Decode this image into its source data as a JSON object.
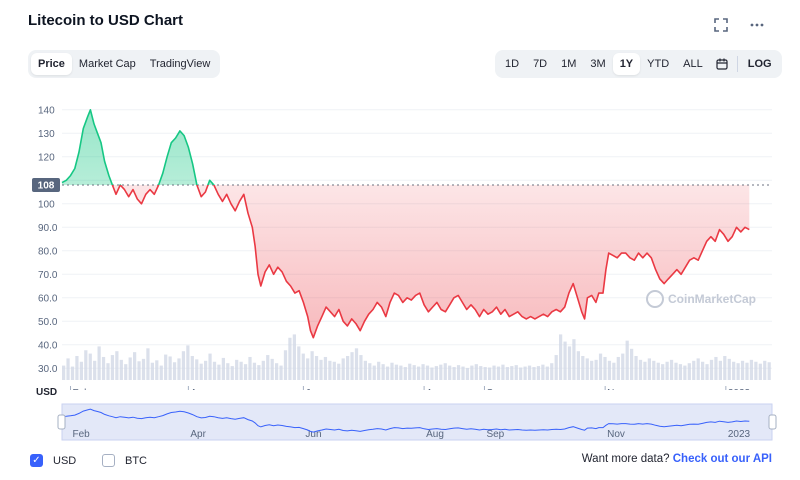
{
  "header": {
    "title": "Litecoin to USD Chart",
    "fullscreen_icon": "expand-icon",
    "more_icon": "more-dots-icon"
  },
  "metric_tabs": [
    {
      "label": "Price",
      "active": true
    },
    {
      "label": "Market Cap",
      "active": false
    },
    {
      "label": "TradingView",
      "active": false
    }
  ],
  "range_tabs": [
    {
      "label": "1D",
      "active": false
    },
    {
      "label": "7D",
      "active": false
    },
    {
      "label": "1M",
      "active": false
    },
    {
      "label": "3M",
      "active": false
    },
    {
      "label": "1Y",
      "active": true
    },
    {
      "label": "YTD",
      "active": false
    },
    {
      "label": "ALL",
      "active": false
    }
  ],
  "calendar_icon": "calendar-icon",
  "log_label": "LOG",
  "watermark": "CoinMarketCap",
  "currency_axis_label": "USD",
  "colors": {
    "up": "#16c784",
    "down": "#ea3943",
    "accent": "#3861fb"
  },
  "chart_data": {
    "type": "line",
    "ylim": [
      25,
      145
    ],
    "yticks": [
      30,
      40,
      50,
      60,
      70,
      80,
      90,
      100,
      110,
      120,
      130,
      140
    ],
    "ytick_labels": [
      "30.0",
      "40.0",
      "50.0",
      "60.0",
      "70.0",
      "80.0",
      "90.0",
      "100",
      "",
      "120",
      "130",
      "140"
    ],
    "reference_value": 108,
    "reference_label": "108",
    "x_ticks": [
      {
        "label": "Feb",
        "t": 0.012
      },
      {
        "label": "Apr",
        "t": 0.178
      },
      {
        "label": "Jun",
        "t": 0.34
      },
      {
        "label": "Aug",
        "t": 0.51
      },
      {
        "label": "Sep",
        "t": 0.595
      },
      {
        "label": "Nov",
        "t": 0.765
      },
      {
        "label": "2023",
        "t": 0.935
      }
    ],
    "series": [
      {
        "points": [
          [
            0.0,
            109
          ],
          [
            0.006,
            110
          ],
          [
            0.012,
            112
          ],
          [
            0.018,
            115
          ],
          [
            0.024,
            122
          ],
          [
            0.03,
            132
          ],
          [
            0.036,
            137
          ],
          [
            0.04,
            140
          ],
          [
            0.045,
            134
          ],
          [
            0.05,
            130
          ],
          [
            0.055,
            126
          ],
          [
            0.06,
            118
          ],
          [
            0.066,
            112
          ],
          [
            0.071,
            108
          ],
          [
            0.076,
            104
          ],
          [
            0.082,
            108
          ],
          [
            0.088,
            106
          ],
          [
            0.094,
            103
          ],
          [
            0.1,
            106
          ],
          [
            0.106,
            102
          ],
          [
            0.112,
            100
          ],
          [
            0.118,
            104
          ],
          [
            0.124,
            106
          ],
          [
            0.13,
            104
          ],
          [
            0.136,
            108
          ],
          [
            0.142,
            113
          ],
          [
            0.148,
            120
          ],
          [
            0.154,
            126
          ],
          [
            0.16,
            128
          ],
          [
            0.166,
            131
          ],
          [
            0.172,
            129
          ],
          [
            0.178,
            124
          ],
          [
            0.184,
            117
          ],
          [
            0.19,
            108
          ],
          [
            0.196,
            103
          ],
          [
            0.202,
            105
          ],
          [
            0.208,
            110
          ],
          [
            0.214,
            108
          ],
          [
            0.22,
            104
          ],
          [
            0.226,
            101
          ],
          [
            0.232,
            104
          ],
          [
            0.238,
            100
          ],
          [
            0.244,
            97
          ],
          [
            0.25,
            101
          ],
          [
            0.256,
            104
          ],
          [
            0.262,
            96
          ],
          [
            0.268,
            90
          ],
          [
            0.272,
            82
          ],
          [
            0.276,
            70
          ],
          [
            0.28,
            65
          ],
          [
            0.286,
            71
          ],
          [
            0.292,
            74
          ],
          [
            0.298,
            70
          ],
          [
            0.304,
            73
          ],
          [
            0.31,
            71
          ],
          [
            0.316,
            67
          ],
          [
            0.322,
            65
          ],
          [
            0.328,
            62
          ],
          [
            0.334,
            63
          ],
          [
            0.34,
            58
          ],
          [
            0.346,
            52
          ],
          [
            0.35,
            46
          ],
          [
            0.354,
            43
          ],
          [
            0.36,
            48
          ],
          [
            0.366,
            52
          ],
          [
            0.372,
            56
          ],
          [
            0.378,
            54
          ],
          [
            0.384,
            52
          ],
          [
            0.39,
            55
          ],
          [
            0.396,
            50
          ],
          [
            0.402,
            48
          ],
          [
            0.408,
            51
          ],
          [
            0.414,
            49
          ],
          [
            0.42,
            46
          ],
          [
            0.426,
            50
          ],
          [
            0.432,
            53
          ],
          [
            0.438,
            55
          ],
          [
            0.444,
            58
          ],
          [
            0.45,
            56
          ],
          [
            0.456,
            52
          ],
          [
            0.462,
            58
          ],
          [
            0.468,
            62
          ],
          [
            0.474,
            61
          ],
          [
            0.48,
            58
          ],
          [
            0.486,
            60
          ],
          [
            0.492,
            59
          ],
          [
            0.498,
            61
          ],
          [
            0.504,
            62
          ],
          [
            0.51,
            57
          ],
          [
            0.516,
            54
          ],
          [
            0.522,
            56
          ],
          [
            0.528,
            58
          ],
          [
            0.534,
            55
          ],
          [
            0.54,
            54
          ],
          [
            0.546,
            57
          ],
          [
            0.552,
            60
          ],
          [
            0.558,
            61
          ],
          [
            0.564,
            58
          ],
          [
            0.57,
            55
          ],
          [
            0.576,
            57
          ],
          [
            0.582,
            55
          ],
          [
            0.588,
            52
          ],
          [
            0.594,
            55
          ],
          [
            0.6,
            53
          ],
          [
            0.606,
            54
          ],
          [
            0.612,
            56
          ],
          [
            0.618,
            53
          ],
          [
            0.624,
            55
          ],
          [
            0.63,
            52
          ],
          [
            0.636,
            53
          ],
          [
            0.642,
            54
          ],
          [
            0.648,
            52
          ],
          [
            0.654,
            51
          ],
          [
            0.66,
            52
          ],
          [
            0.666,
            51
          ],
          [
            0.672,
            52
          ],
          [
            0.678,
            53
          ],
          [
            0.684,
            52
          ],
          [
            0.69,
            54
          ],
          [
            0.696,
            55
          ],
          [
            0.702,
            54
          ],
          [
            0.708,
            56
          ],
          [
            0.714,
            62
          ],
          [
            0.72,
            66
          ],
          [
            0.726,
            60
          ],
          [
            0.732,
            54
          ],
          [
            0.736,
            51
          ],
          [
            0.74,
            60
          ],
          [
            0.746,
            61
          ],
          [
            0.752,
            58
          ],
          [
            0.756,
            62
          ],
          [
            0.762,
            62
          ],
          [
            0.766,
            72
          ],
          [
            0.77,
            79
          ],
          [
            0.776,
            78
          ],
          [
            0.782,
            77
          ],
          [
            0.788,
            79
          ],
          [
            0.794,
            79
          ],
          [
            0.8,
            77
          ],
          [
            0.806,
            76
          ],
          [
            0.812,
            79
          ],
          [
            0.818,
            77
          ],
          [
            0.824,
            79
          ],
          [
            0.83,
            77
          ],
          [
            0.836,
            72
          ],
          [
            0.842,
            68
          ],
          [
            0.848,
            66
          ],
          [
            0.854,
            68
          ],
          [
            0.86,
            70
          ],
          [
            0.866,
            72
          ],
          [
            0.872,
            70
          ],
          [
            0.878,
            73
          ],
          [
            0.884,
            76
          ],
          [
            0.89,
            77
          ],
          [
            0.896,
            76
          ],
          [
            0.902,
            80
          ],
          [
            0.908,
            84
          ],
          [
            0.914,
            86
          ],
          [
            0.92,
            84
          ],
          [
            0.926,
            89
          ],
          [
            0.932,
            87
          ],
          [
            0.938,
            84
          ],
          [
            0.944,
            86
          ],
          [
            0.95,
            90
          ],
          [
            0.956,
            88
          ],
          [
            0.962,
            90
          ],
          [
            0.968,
            89
          ]
        ]
      }
    ],
    "volume": [
      0.3,
      0.45,
      0.28,
      0.5,
      0.38,
      0.62,
      0.55,
      0.4,
      0.7,
      0.48,
      0.35,
      0.52,
      0.6,
      0.42,
      0.33,
      0.47,
      0.58,
      0.39,
      0.44,
      0.66,
      0.36,
      0.41,
      0.3,
      0.53,
      0.49,
      0.37,
      0.45,
      0.6,
      0.72,
      0.5,
      0.43,
      0.34,
      0.4,
      0.55,
      0.38,
      0.32,
      0.46,
      0.35,
      0.29,
      0.42,
      0.38,
      0.33,
      0.48,
      0.36,
      0.31,
      0.4,
      0.52,
      0.44,
      0.35,
      0.3,
      0.62,
      0.88,
      0.95,
      0.7,
      0.55,
      0.45,
      0.6,
      0.5,
      0.42,
      0.48,
      0.4,
      0.38,
      0.34,
      0.45,
      0.5,
      0.58,
      0.66,
      0.52,
      0.4,
      0.35,
      0.3,
      0.38,
      0.33,
      0.28,
      0.36,
      0.32,
      0.3,
      0.27,
      0.34,
      0.31,
      0.28,
      0.33,
      0.3,
      0.26,
      0.29,
      0.32,
      0.35,
      0.3,
      0.27,
      0.31,
      0.28,
      0.25,
      0.3,
      0.33,
      0.29,
      0.27,
      0.26,
      0.3,
      0.28,
      0.32,
      0.27,
      0.29,
      0.31,
      0.26,
      0.28,
      0.3,
      0.27,
      0.29,
      0.32,
      0.28,
      0.35,
      0.52,
      0.95,
      0.8,
      0.7,
      0.85,
      0.6,
      0.5,
      0.45,
      0.4,
      0.42,
      0.55,
      0.48,
      0.4,
      0.36,
      0.48,
      0.55,
      0.82,
      0.65,
      0.5,
      0.42,
      0.38,
      0.45,
      0.4,
      0.36,
      0.33,
      0.38,
      0.42,
      0.36,
      0.33,
      0.3,
      0.35,
      0.4,
      0.45,
      0.38,
      0.33,
      0.42,
      0.48,
      0.4,
      0.5,
      0.44,
      0.38,
      0.35,
      0.4,
      0.36,
      0.42,
      0.38,
      0.34,
      0.4,
      0.37
    ]
  },
  "navigator": {
    "x_ticks": [
      {
        "label": "Feb",
        "t": 0.012
      },
      {
        "label": "Apr",
        "t": 0.178
      },
      {
        "label": "Jun",
        "t": 0.34
      },
      {
        "label": "Aug",
        "t": 0.51
      },
      {
        "label": "Sep",
        "t": 0.595
      },
      {
        "label": "Nov",
        "t": 0.765
      },
      {
        "label": "2023",
        "t": 0.935
      }
    ]
  },
  "footer": {
    "usd_label": "USD",
    "usd_checked": true,
    "btc_label": "BTC",
    "btc_checked": false,
    "more_data_text": "Want more data?",
    "api_link_text": "Check out our API"
  }
}
